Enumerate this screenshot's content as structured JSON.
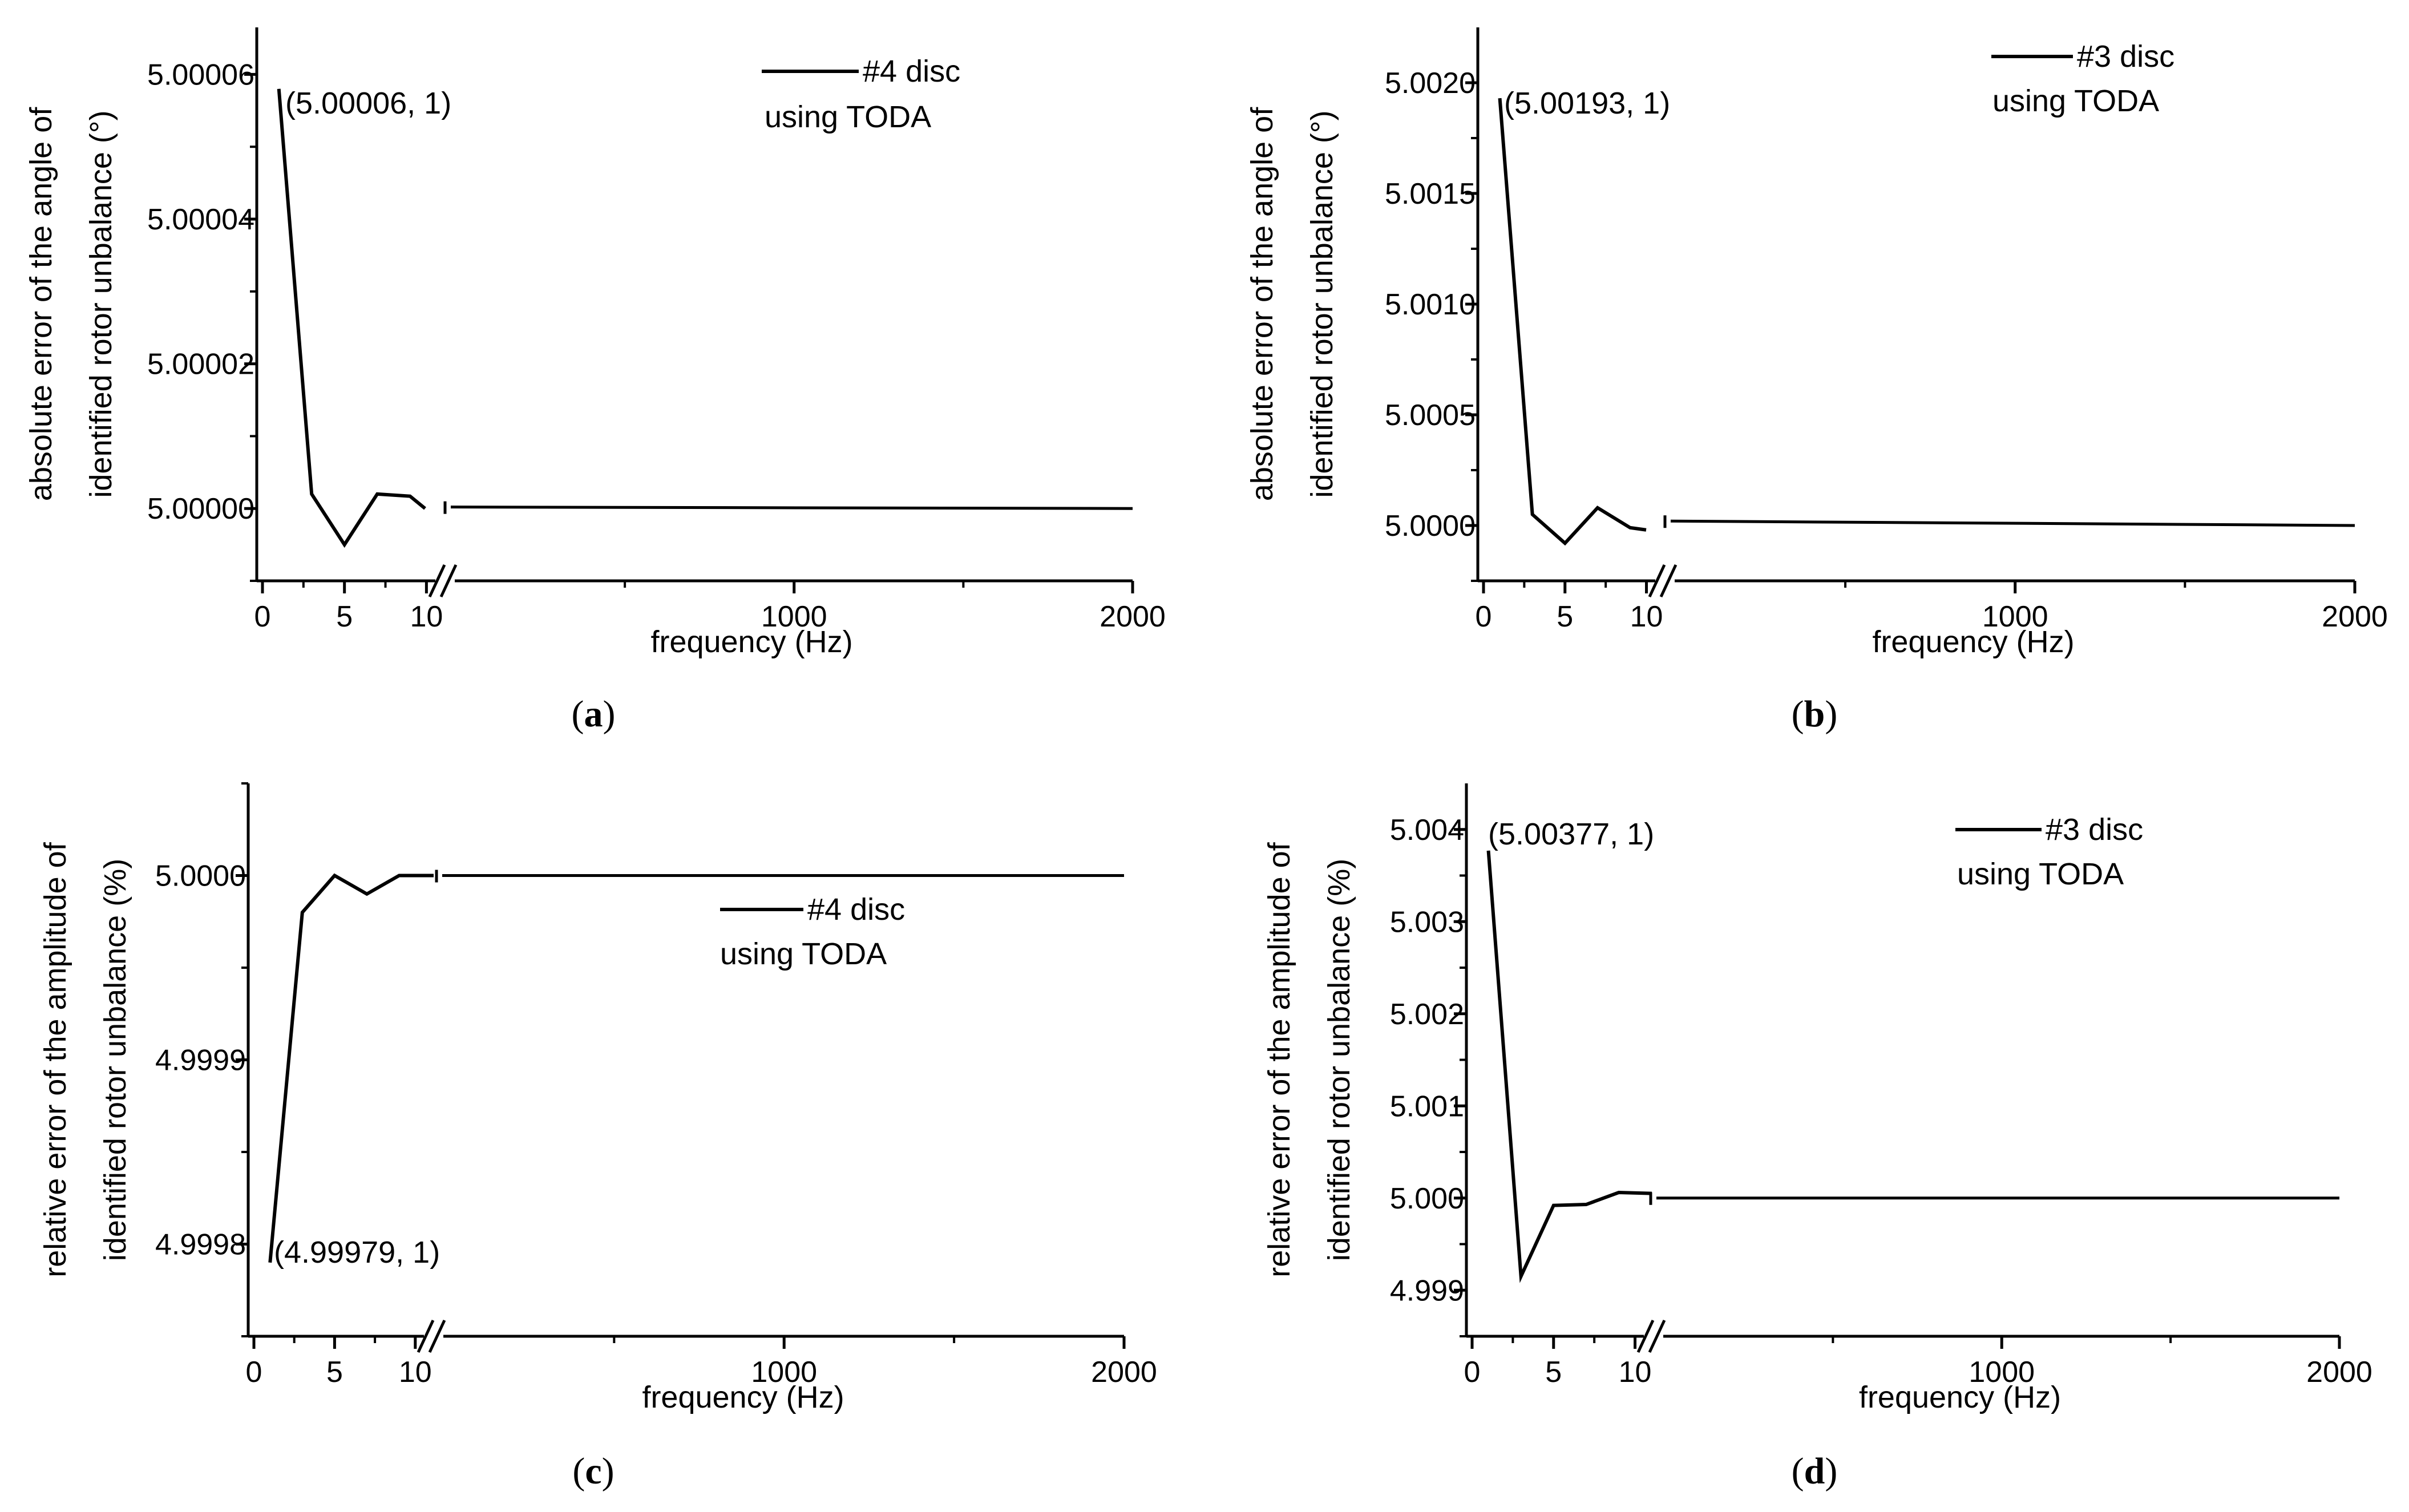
{
  "chart_data": [
    {
      "id": "a",
      "type": "line",
      "caption_letter": "a",
      "ylabel_lines": [
        "absolute error of the angle of",
        "identified rotor unbalance (°)"
      ],
      "xlabel": "frequency (Hz)",
      "ylim": [
        4.99999,
        5.0000665
      ],
      "yticks": [
        5.0,
        5.00002,
        5.00004,
        5.00006
      ],
      "ytick_labels": [
        "5.00000",
        "5.00002",
        "5.00004",
        "5.00006"
      ],
      "ytick_minor": [
        4.99999,
        5.00001,
        5.00003,
        5.00005
      ],
      "xticks_left": [
        0,
        5,
        10
      ],
      "xticks_right": [
        1000,
        2000
      ],
      "xtick_labels_left": [
        "0",
        "5",
        "10"
      ],
      "xtick_labels_right": [
        "1000",
        "2000"
      ],
      "series": [
        {
          "name": "#4 disc using TODA",
          "left": [
            [
              1,
              5.000058
            ],
            [
              3,
              5.000002
            ],
            [
              5,
              4.999995
            ],
            [
              7,
              5.000002
            ],
            [
              9,
              5.0000017
            ],
            [
              10.5,
              5.0
            ]
          ],
          "right_start": [
            11,
            5.0000002
          ],
          "right_end": [
            2000,
            5.0
          ]
        }
      ],
      "legend_lines": [
        "#4 disc",
        "using TODA"
      ],
      "legend_position": "top-right",
      "annotation": {
        "text": "(5.00006, 1)",
        "x": 1,
        "y": 5.000058
      }
    },
    {
      "id": "b",
      "type": "line",
      "caption_letter": "b",
      "ylabel_lines": [
        "absolute error of the angle of",
        "identified rotor unbalance (°)"
      ],
      "xlabel": "frequency (Hz)",
      "ylim": [
        4.99975,
        5.00225
      ],
      "yticks": [
        5.0,
        5.0005,
        5.001,
        5.0015,
        5.002
      ],
      "ytick_labels": [
        "5.0000",
        "5.0005",
        "5.0010",
        "5.0015",
        "5.0020"
      ],
      "ytick_minor": [
        4.99975,
        5.00025,
        5.00075,
        5.00125,
        5.00175
      ],
      "xticks_left": [
        0,
        5,
        10
      ],
      "xticks_right": [
        1000,
        2000
      ],
      "xtick_labels_left": [
        "0",
        "5",
        "10"
      ],
      "xtick_labels_right": [
        "1000",
        "2000"
      ],
      "series": [
        {
          "name": "#3 disc using TODA",
          "left": [
            [
              1,
              5.00193
            ],
            [
              3,
              5.00005
            ],
            [
              5,
              4.99992
            ],
            [
              7,
              5.00008
            ],
            [
              9,
              4.99999
            ],
            [
              10.5,
              4.99998
            ]
          ],
          "right_start": [
            11,
            5.00002
          ],
          "right_end": [
            2000,
            5.0
          ]
        }
      ],
      "legend_lines": [
        "#3 disc",
        "using TODA"
      ],
      "legend_position": "top-right",
      "annotation": {
        "text": "(5.00193, 1)",
        "x": 1,
        "y": 5.00193
      }
    },
    {
      "id": "c",
      "type": "line",
      "caption_letter": "c",
      "ylabel_lines": [
        "relative error of the amplitude of",
        "identified rotor unbalance (%)"
      ],
      "xlabel": "frequency (Hz)",
      "ylim": [
        4.99975,
        5.00005
      ],
      "yticks": [
        4.9998,
        4.9999,
        5.0
      ],
      "ytick_labels": [
        "4.9998",
        "4.9999",
        "5.0000"
      ],
      "ytick_minor": [
        4.99975,
        4.99985,
        4.99995,
        5.00005
      ],
      "xticks_left": [
        0,
        5,
        10
      ],
      "xticks_right": [
        1000,
        2000
      ],
      "xtick_labels_left": [
        "0",
        "5",
        "10"
      ],
      "xtick_labels_right": [
        "1000",
        "2000"
      ],
      "series": [
        {
          "name": "#4 disc using TODA",
          "left": [
            [
              1,
              4.99979
            ],
            [
              3,
              4.99998
            ],
            [
              5,
              5.0
            ],
            [
              7,
              4.99999
            ],
            [
              9,
              5.0
            ],
            [
              10.5,
              5.0
            ]
          ],
          "right_start": [
            11,
            5.0
          ],
          "right_end": [
            2000,
            5.0
          ]
        }
      ],
      "legend_lines": [
        "#4 disc",
        "using TODA"
      ],
      "legend_position": "center-right",
      "annotation": {
        "text": "(4.99979, 1)",
        "x": 1,
        "y": 4.99979
      }
    },
    {
      "id": "d",
      "type": "line",
      "caption_letter": "d",
      "ylabel_lines": [
        "relative error of the amplitude of",
        "identified rotor unbalance (%)"
      ],
      "xlabel": "frequency (Hz)",
      "ylim": [
        4.9985,
        5.0045
      ],
      "yticks": [
        4.999,
        5.0,
        5.001,
        5.002,
        5.003,
        5.004
      ],
      "ytick_labels": [
        "4.999",
        "5.000",
        "5.001",
        "5.002",
        "5.003",
        "5.004"
      ],
      "ytick_minor": [
        4.9985,
        4.9995,
        5.0005,
        5.0015,
        5.0025,
        5.0035
      ],
      "xticks_left": [
        0,
        5,
        10
      ],
      "xticks_right": [
        1000,
        2000
      ],
      "xtick_labels_left": [
        "0",
        "5",
        "10"
      ],
      "xtick_labels_right": [
        "1000",
        "2000"
      ],
      "series": [
        {
          "name": "#3 disc using TODA",
          "left": [
            [
              1,
              5.00377
            ],
            [
              3,
              4.99915
            ],
            [
              5,
              4.99992
            ],
            [
              7,
              4.99993
            ],
            [
              9,
              5.00006
            ],
            [
              10.5,
              5.00005
            ]
          ],
          "right_start": [
            11,
            5.0
          ],
          "right_end": [
            2000,
            5.0
          ]
        }
      ],
      "legend_lines": [
        "#3 disc",
        "using TODA"
      ],
      "legend_position": "top-right",
      "annotation": {
        "text": "(5.00377, 1)",
        "x": 1,
        "y": 5.00377
      }
    }
  ]
}
